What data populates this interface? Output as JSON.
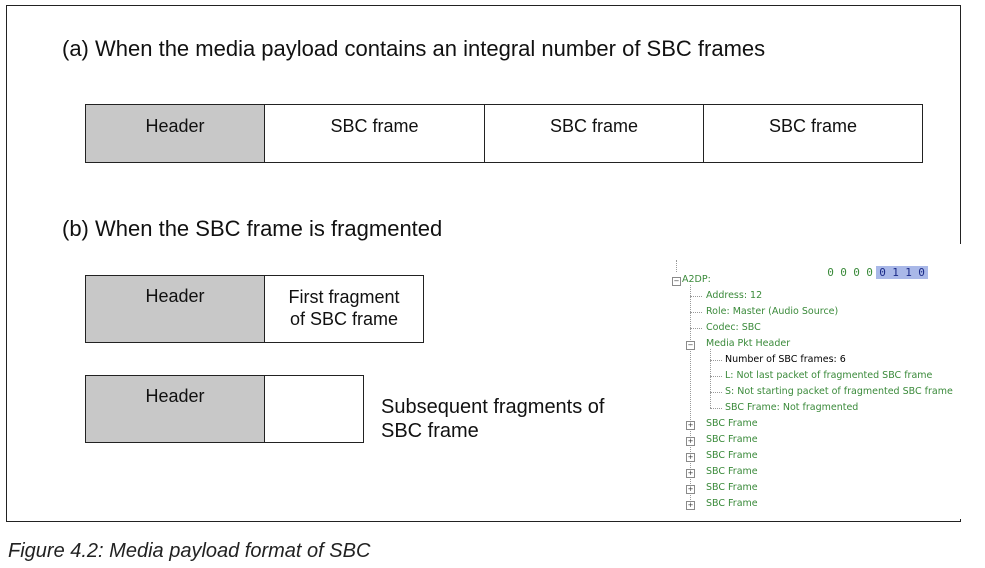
{
  "section_a": {
    "title": "(a) When the media payload contains an integral number of SBC frames",
    "boxes": [
      "Header",
      "SBC frame",
      "SBC frame",
      "SBC frame"
    ]
  },
  "section_b": {
    "title": "(b) When the SBC frame is fragmented",
    "row1": {
      "header": "Header",
      "fragment": "First fragment of SBC frame"
    },
    "row2": {
      "header": "Header",
      "fragment": "",
      "note": "Subsequent fragments of SBC frame"
    }
  },
  "tree": {
    "root": "A2DP:",
    "bits": [
      "0",
      "0",
      "0",
      "0",
      "0",
      "1",
      "1",
      "0"
    ],
    "highlighted_bits": [
      4,
      5,
      6,
      7
    ],
    "items": {
      "address": "Address: 12",
      "role": "Role: Master (Audio Source)",
      "codec": "Codec: SBC",
      "media_header": "Media Pkt Header",
      "num_frames": "Number of SBC frames: 6",
      "l_flag": "L: Not last packet of fragmented SBC frame",
      "s_flag": "S: Not starting packet of fragmented SBC frame",
      "sbc_frag": "SBC Frame: Not fragmented",
      "sbc_frames": [
        "SBC Frame",
        "SBC Frame",
        "SBC Frame",
        "SBC Frame",
        "SBC Frame",
        "SBC Frame"
      ]
    }
  },
  "caption": "Figure 4.2: Media payload format of SBC"
}
